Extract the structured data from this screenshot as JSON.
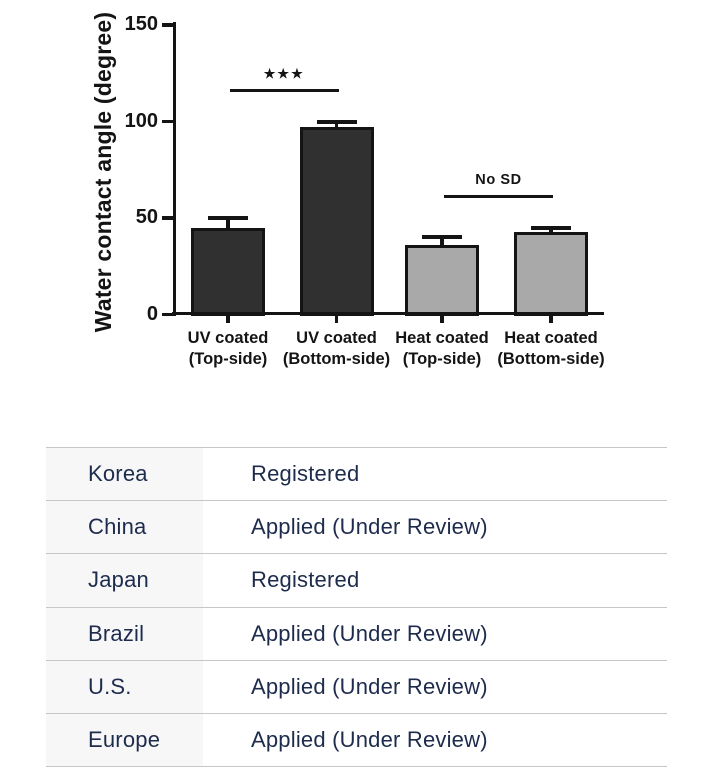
{
  "chart_data": {
    "type": "bar",
    "title": "",
    "xlabel": "",
    "ylabel": "Water contact angle (degree)",
    "ylim": [
      0,
      150
    ],
    "yticks": [
      0,
      50,
      100,
      150
    ],
    "grid": false,
    "legend": "none",
    "categories": [
      "UV coated (Top-side)",
      "UV coated (Bottom-side)",
      "Heat coated (Top-side)",
      "Heat coated (Bottom-side)"
    ],
    "category_lines": [
      [
        "UV coated",
        "(Top-side)"
      ],
      [
        "UV coated",
        "(Bottom-side)"
      ],
      [
        "Heat coated",
        "(Top-side)"
      ],
      [
        "Heat coated",
        "(Bottom-side)"
      ]
    ],
    "series": [
      {
        "name": "Water contact angle",
        "values": [
          45,
          97,
          36,
          43
        ],
        "errors": [
          5,
          3,
          4,
          2
        ]
      }
    ],
    "bar_colors": [
      "#303030",
      "#303030",
      "#a9a9a9",
      "#a9a9a9"
    ],
    "bar_border_color": "#141414",
    "axis_color": "#141414",
    "annotations": [
      {
        "label": "★★★",
        "from_bar": 0,
        "to_bar": 1,
        "line_value": 117,
        "style": "stars"
      },
      {
        "label": "No SD",
        "from_bar": 2,
        "to_bar": 3,
        "line_value": 62,
        "style": "text"
      }
    ]
  },
  "table": {
    "rows": [
      {
        "country": "Korea",
        "status": "Registered"
      },
      {
        "country": "China",
        "status": "Applied (Under Review)"
      },
      {
        "country": "Japan",
        "status": "Registered"
      },
      {
        "country": "Brazil",
        "status": "Applied (Under Review)"
      },
      {
        "country": "U.S.",
        "status": "Applied (Under Review)"
      },
      {
        "country": "Europe",
        "status": "Applied (Under Review)"
      }
    ],
    "text_color": "#1d2b4c",
    "divider_color": "#c7c7c7",
    "label_col_bg": "#f7f7f8"
  }
}
